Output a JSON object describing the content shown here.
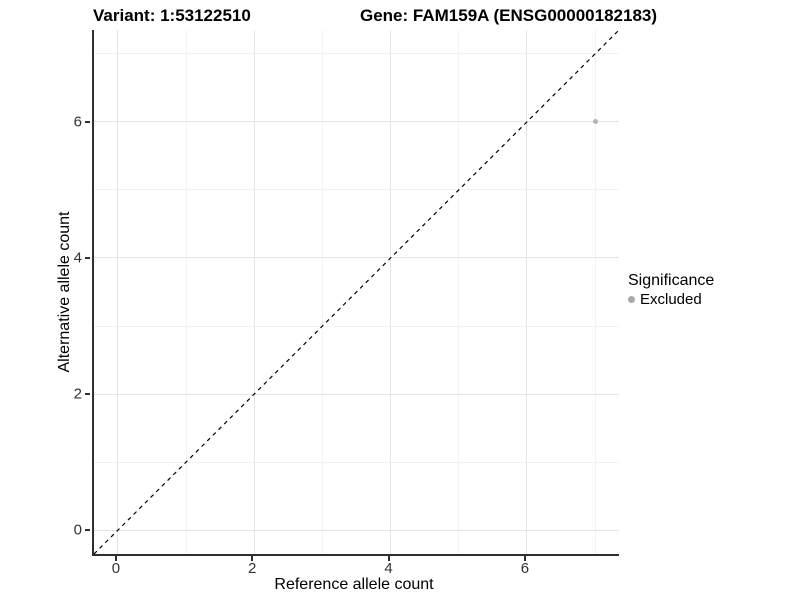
{
  "titles": {
    "variant": "Variant: 1:53122510",
    "gene": "Gene: FAM159A (ENSG00000182183)"
  },
  "chart_data": {
    "type": "scatter",
    "title": "Variant: 1:53122510    Gene: FAM159A (ENSG00000182183)",
    "xlabel": "Reference allele count",
    "ylabel": "Alternative allele count",
    "xlim": [
      -0.35,
      7.35
    ],
    "ylim": [
      -0.35,
      7.35
    ],
    "xticks": [
      0,
      2,
      4,
      6
    ],
    "yticks": [
      0,
      2,
      4,
      6
    ],
    "minor_grid_x": [
      1,
      3,
      5,
      7
    ],
    "minor_grid_y": [
      1,
      3,
      5,
      7
    ],
    "grid": true,
    "points": [
      {
        "x": 7,
        "y": 6,
        "series": "Excluded"
      }
    ],
    "reference_line": {
      "kind": "identity",
      "linestyle": "dashed"
    },
    "legend": {
      "title": "Significance",
      "position": "right",
      "items": [
        {
          "label": "Excluded",
          "color": "#a8a8a8"
        }
      ]
    },
    "colors": {
      "point": "#b5b5b5",
      "reference_line": "#000000",
      "grid_major": "#e4e4e4",
      "grid_minor": "#f2f2f2",
      "axis_line": "#2f2f2f"
    }
  }
}
